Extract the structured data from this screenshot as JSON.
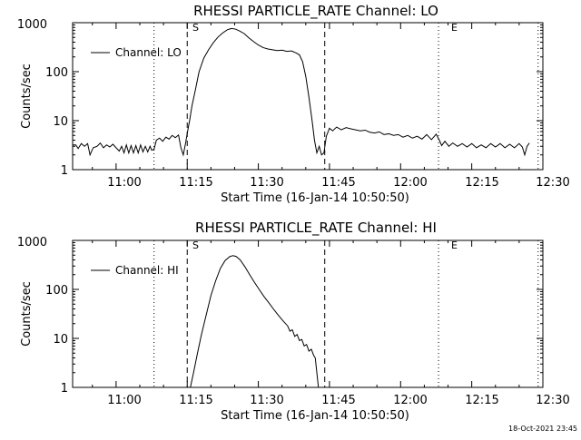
{
  "footer": {
    "timestamp": "18-Oct-2021 23:45"
  },
  "chart_data": [
    {
      "type": "line",
      "title": "RHESSI PARTICLE_RATE Channel: LO",
      "xlabel": "Start Time (16-Jan-14 10:50:50)",
      "ylabel": "Counts/sec",
      "y_scale": "log",
      "ylim": [
        1,
        1000
      ],
      "xlim": [
        "10:50:50",
        "12:30:00"
      ],
      "x_ticks": [
        "11:00",
        "11:15",
        "11:30",
        "11:45",
        "12:00",
        "12:15",
        "12:30"
      ],
      "y_ticks": [
        "1",
        "10",
        "100",
        "1000"
      ],
      "legend": {
        "label": "Channel: LO",
        "position": "top-left"
      },
      "markers": [
        {
          "time": "11:08",
          "style": "dotted",
          "label": ""
        },
        {
          "time": "11:15",
          "style": "dashed",
          "label": "S"
        },
        {
          "time": "11:44",
          "style": "dashed",
          "label": ""
        },
        {
          "time": "12:08",
          "style": "dotted",
          "label": "E"
        },
        {
          "time": "12:29",
          "style": "dotted",
          "label": ""
        }
      ],
      "series": [
        {
          "name": "Channel: LO",
          "points": [
            [
              "10:50:50",
              3.2
            ],
            [
              "10:51:30",
              3.2
            ],
            [
              "10:52:00",
              2.7
            ],
            [
              "10:52:40",
              3.4
            ],
            [
              "10:53:20",
              3.0
            ],
            [
              "10:54:00",
              3.4
            ],
            [
              "10:54:30",
              2.0
            ],
            [
              "10:55:10",
              2.8
            ],
            [
              "10:56:00",
              3.0
            ],
            [
              "10:56:40",
              3.5
            ],
            [
              "10:57:20",
              2.8
            ],
            [
              "10:58:00",
              3.2
            ],
            [
              "10:58:40",
              2.9
            ],
            [
              "10:59:20",
              3.3
            ],
            [
              "11:00:00",
              2.8
            ],
            [
              "11:00:40",
              2.4
            ],
            [
              "11:01:10",
              3.0
            ],
            [
              "11:01:40",
              2.2
            ],
            [
              "11:02:10",
              3.2
            ],
            [
              "11:02:40",
              2.2
            ],
            [
              "11:03:10",
              3.1
            ],
            [
              "11:03:40",
              2.2
            ],
            [
              "11:04:10",
              3.1
            ],
            [
              "11:04:40",
              2.2
            ],
            [
              "11:05:10",
              3.2
            ],
            [
              "11:05:40",
              2.3
            ],
            [
              "11:06:10",
              3.0
            ],
            [
              "11:06:40",
              2.3
            ],
            [
              "11:07:10",
              3.0
            ],
            [
              "11:07:30",
              2.5
            ],
            [
              "11:08:00",
              2.6
            ],
            [
              "11:08:30",
              4.0
            ],
            [
              "11:09:10",
              4.4
            ],
            [
              "11:09:50",
              3.8
            ],
            [
              "11:10:30",
              4.6
            ],
            [
              "11:11:10",
              4.2
            ],
            [
              "11:11:50",
              5.0
            ],
            [
              "11:12:30",
              4.5
            ],
            [
              "11:13:10",
              5.1
            ],
            [
              "11:13:40",
              2.8
            ],
            [
              "11:14:10",
              2.0
            ],
            [
              "11:14:40",
              3.5
            ],
            [
              "11:15:00",
              5.5
            ],
            [
              "11:15:30",
              10
            ],
            [
              "11:16:00",
              20
            ],
            [
              "11:16:40",
              40
            ],
            [
              "11:17:30",
              100
            ],
            [
              "11:18:30",
              190
            ],
            [
              "11:19:30",
              280
            ],
            [
              "11:20:30",
              390
            ],
            [
              "11:21:30",
              510
            ],
            [
              "11:22:30",
              620
            ],
            [
              "11:23:30",
              720
            ],
            [
              "11:24:20",
              760
            ],
            [
              "11:25:10",
              740
            ],
            [
              "11:26:00",
              680
            ],
            [
              "11:27:00",
              600
            ],
            [
              "11:28:00",
              490
            ],
            [
              "11:29:00",
              410
            ],
            [
              "11:30:00",
              350
            ],
            [
              "11:31:00",
              310
            ],
            [
              "11:32:00",
              290
            ],
            [
              "11:33:00",
              280
            ],
            [
              "11:34:00",
              270
            ],
            [
              "11:35:00",
              275
            ],
            [
              "11:36:00",
              260
            ],
            [
              "11:37:00",
              265
            ],
            [
              "11:38:00",
              240
            ],
            [
              "11:38:40",
              220
            ],
            [
              "11:39:20",
              160
            ],
            [
              "11:40:00",
              80
            ],
            [
              "11:40:40",
              30
            ],
            [
              "11:41:20",
              10
            ],
            [
              "11:41:50",
              4.0
            ],
            [
              "11:42:20",
              2.2
            ],
            [
              "11:42:50",
              3.0
            ],
            [
              "11:43:20",
              2.0
            ],
            [
              "11:43:50",
              2.2
            ],
            [
              "11:44:20",
              4.8
            ],
            [
              "11:45:00",
              7.0
            ],
            [
              "11:45:40",
              6.2
            ],
            [
              "11:46:30",
              7.4
            ],
            [
              "11:47:30",
              6.5
            ],
            [
              "11:48:30",
              7.2
            ],
            [
              "11:49:30",
              6.8
            ],
            [
              "11:50:30",
              6.5
            ],
            [
              "11:51:30",
              6.2
            ],
            [
              "11:52:30",
              6.4
            ],
            [
              "11:53:30",
              5.8
            ],
            [
              "11:54:30",
              5.6
            ],
            [
              "11:55:30",
              5.9
            ],
            [
              "11:56:30",
              5.2
            ],
            [
              "11:57:30",
              5.4
            ],
            [
              "11:58:30",
              5.0
            ],
            [
              "11:59:30",
              5.2
            ],
            [
              "12:00:30",
              4.6
            ],
            [
              "12:01:30",
              5.0
            ],
            [
              "12:02:30",
              4.4
            ],
            [
              "12:03:30",
              4.8
            ],
            [
              "12:04:30",
              4.2
            ],
            [
              "12:05:30",
              5.2
            ],
            [
              "12:06:30",
              4.1
            ],
            [
              "12:07:30",
              5.3
            ],
            [
              "12:08:10",
              4.0
            ],
            [
              "12:08:40",
              3.1
            ],
            [
              "12:09:20",
              3.8
            ],
            [
              "12:10:10",
              3.0
            ],
            [
              "12:11:00",
              3.5
            ],
            [
              "12:12:00",
              3.0
            ],
            [
              "12:13:00",
              3.4
            ],
            [
              "12:14:00",
              2.9
            ],
            [
              "12:15:00",
              3.4
            ],
            [
              "12:16:00",
              2.8
            ],
            [
              "12:17:00",
              3.2
            ],
            [
              "12:18:00",
              2.8
            ],
            [
              "12:19:00",
              3.4
            ],
            [
              "12:20:00",
              2.9
            ],
            [
              "12:21:00",
              3.4
            ],
            [
              "12:22:00",
              2.8
            ],
            [
              "12:23:00",
              3.3
            ],
            [
              "12:24:00",
              2.8
            ],
            [
              "12:25:00",
              3.4
            ],
            [
              "12:25:40",
              2.9
            ],
            [
              "12:26:10",
              2.0
            ],
            [
              "12:26:40",
              3.0
            ],
            [
              "12:27:10",
              3.5
            ]
          ]
        }
      ]
    },
    {
      "type": "line",
      "title": "RHESSI PARTICLE_RATE Channel: HI",
      "xlabel": "Start Time (16-Jan-14 10:50:50)",
      "ylabel": "Counts/sec",
      "y_scale": "log",
      "ylim": [
        1,
        1000
      ],
      "xlim": [
        "10:50:50",
        "12:30:00"
      ],
      "x_ticks": [
        "11:00",
        "11:15",
        "11:30",
        "11:45",
        "12:00",
        "12:15",
        "12:30"
      ],
      "y_ticks": [
        "1",
        "10",
        "100",
        "1000"
      ],
      "legend": {
        "label": "Channel: HI",
        "position": "top-left"
      },
      "markers": [
        {
          "time": "11:08",
          "style": "dotted",
          "label": ""
        },
        {
          "time": "11:15",
          "style": "dashed",
          "label": "S"
        },
        {
          "time": "11:44",
          "style": "dashed",
          "label": ""
        },
        {
          "time": "12:08",
          "style": "dotted",
          "label": "E"
        },
        {
          "time": "12:29",
          "style": "dotted",
          "label": ""
        }
      ],
      "series": [
        {
          "name": "Channel: HI",
          "points": [
            [
              "11:15:40",
              1.0
            ],
            [
              "11:16:20",
              2.0
            ],
            [
              "11:17:10",
              5.0
            ],
            [
              "11:18:00",
              12
            ],
            [
              "11:19:00",
              30
            ],
            [
              "11:20:00",
              75
            ],
            [
              "11:21:00",
              150
            ],
            [
              "11:22:00",
              270
            ],
            [
              "11:23:00",
              390
            ],
            [
              "11:24:00",
              470
            ],
            [
              "11:24:40",
              490
            ],
            [
              "11:25:20",
              470
            ],
            [
              "11:26:10",
              400
            ],
            [
              "11:27:10",
              290
            ],
            [
              "11:28:10",
              200
            ],
            [
              "11:29:10",
              140
            ],
            [
              "11:30:10",
              100
            ],
            [
              "11:31:10",
              72
            ],
            [
              "11:32:10",
              54
            ],
            [
              "11:33:10",
              40
            ],
            [
              "11:34:10",
              30
            ],
            [
              "11:35:10",
              23
            ],
            [
              "11:36:10",
              18
            ],
            [
              "11:36:40",
              14
            ],
            [
              "11:37:10",
              15
            ],
            [
              "11:37:40",
              11
            ],
            [
              "11:38:10",
              12
            ],
            [
              "11:38:40",
              9.0
            ],
            [
              "11:39:10",
              9.5
            ],
            [
              "11:39:40",
              7.0
            ],
            [
              "11:40:10",
              7.5
            ],
            [
              "11:40:40",
              5.5
            ],
            [
              "11:41:10",
              6.0
            ],
            [
              "11:41:40",
              4.5
            ],
            [
              "11:42:00",
              4.0
            ],
            [
              "11:42:20",
              2.0
            ],
            [
              "11:42:40",
              1.0
            ]
          ]
        }
      ]
    }
  ]
}
